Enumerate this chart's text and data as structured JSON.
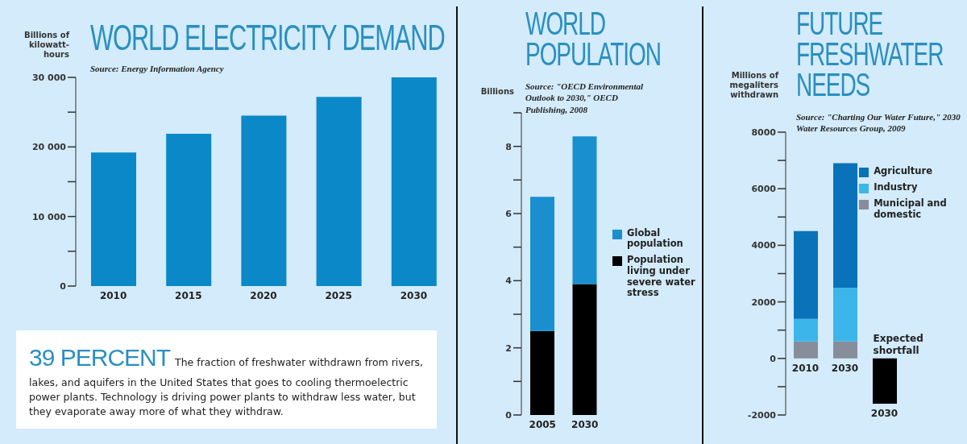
{
  "chart_data": [
    {
      "type": "bar",
      "title": "WORLD ELECTRICITY DEMAND",
      "ylabel": "Billions of kilowatt-hours",
      "annotations": [
        "Source: Energy Information Agency",
        "39 PERCENT",
        "The fraction of freshwater withdrawn from rivers, lakes, and aquifers in the United States that goes to cooling thermoelectric power plants. Technology is driving power plants to withdraw less water, but they evaporate away more of what they withdraw."
      ],
      "categories": [
        "2010",
        "2015",
        "2020",
        "2025",
        "2030"
      ],
      "values": [
        19200,
        21900,
        24500,
        27200,
        30000
      ],
      "color": "#0a88c8",
      "ylim": [
        0,
        30000
      ],
      "yticks": [
        0,
        {
          "value": 5000,
          "label": null
        },
        {
          "value": 10000,
          "label": "10 000"
        },
        {
          "value": 15000,
          "label": null
        },
        {
          "value": 20000,
          "label": "20 000"
        },
        {
          "value": 25000,
          "label": null
        },
        {
          "value": 30000,
          "label": "30 000"
        }
      ]
    },
    {
      "type": "bar",
      "title": "WORLD POPULATION",
      "ylabel": "Billions",
      "annotations": [
        "Source: \"OECD Environmental Outlook to 2030,\" OECD Publishing, 2008"
      ],
      "categories": [
        "2005",
        "2030"
      ],
      "stacked": true,
      "legend": "right",
      "series": [
        {
          "name": "Population living under severe water stress",
          "color": "#000000",
          "values": [
            2.5,
            3.9
          ]
        },
        {
          "name": "Global population",
          "color": "#1a8fcf",
          "values": [
            4.0,
            4.4
          ]
        }
      ],
      "ylim": [
        0,
        9
      ],
      "yticks": [
        0,
        {
          "value": 1,
          "label": null
        },
        2,
        {
          "value": 3,
          "label": null
        },
        4,
        {
          "value": 5,
          "label": null
        },
        6,
        {
          "value": 7,
          "label": null
        },
        8,
        {
          "value": 9,
          "label": null
        }
      ]
    },
    {
      "type": "bar",
      "title": "FUTURE FRESHWATER NEEDS",
      "ylabel": "Millions of megaliters withdrawn",
      "annotations": [
        "Source: \"Charting Our Water Future,\" 2030 Water Resources Group, 2009"
      ],
      "categories": [
        "2010",
        "2030",
        "2030"
      ],
      "stacked": true,
      "legend": "top right",
      "series": [
        {
          "name": "Municipal and domestic",
          "color": "#878d9b",
          "values": [
            600,
            600,
            null
          ]
        },
        {
          "name": "Industry",
          "color": "#3cb6ea",
          "values": [
            800,
            1900,
            null
          ]
        },
        {
          "name": "Agriculture",
          "color": "#0a72b8",
          "values": [
            3100,
            4400,
            null
          ]
        },
        {
          "name": "Expected shortfall",
          "color": "#000000",
          "values": [
            null,
            null,
            -1600
          ]
        }
      ],
      "ylim": [
        -2000,
        8000
      ],
      "yticks": [
        -2000,
        {
          "value": -1000,
          "label": null
        },
        0,
        {
          "value": 1000,
          "label": null
        },
        2000,
        {
          "value": 3000,
          "label": null
        },
        4000,
        {
          "value": 5000,
          "label": null
        },
        6000,
        {
          "value": 7000,
          "label": null
        },
        8000
      ]
    }
  ]
}
